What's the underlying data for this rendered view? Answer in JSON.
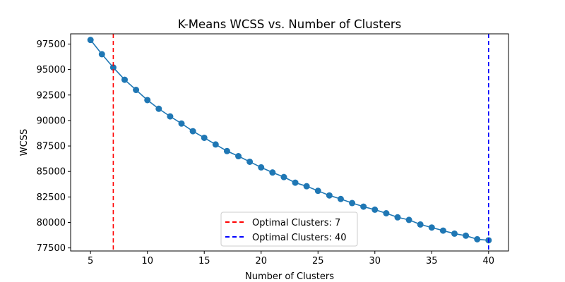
{
  "chart_data": {
    "type": "line",
    "title": "K-Means WCSS vs. Number of Clusters",
    "xlabel": "Number of Clusters",
    "ylabel": "WCSS",
    "xlim": [
      3.25,
      41.75
    ],
    "ylim": [
      77200,
      98500
    ],
    "xticks": [
      5,
      10,
      15,
      20,
      25,
      30,
      35,
      40
    ],
    "yticks": [
      77500,
      80000,
      82500,
      85000,
      87500,
      90000,
      92500,
      95000,
      97500
    ],
    "grid": false,
    "legend_position": "bottom-center",
    "series": [
      {
        "color": "#1f77b4",
        "marker": "circle",
        "x": [
          5,
          6,
          7,
          8,
          9,
          10,
          11,
          12,
          13,
          14,
          15,
          16,
          17,
          18,
          19,
          20,
          21,
          22,
          23,
          24,
          25,
          26,
          27,
          28,
          29,
          30,
          31,
          32,
          33,
          34,
          35,
          36,
          37,
          38,
          39,
          40
        ],
        "values": [
          97900,
          96500,
          95200,
          94000,
          93000,
          92000,
          91150,
          90400,
          89700,
          88950,
          88300,
          87650,
          87000,
          86500,
          85950,
          85400,
          84900,
          84450,
          83900,
          83550,
          83100,
          82650,
          82300,
          81900,
          81550,
          81250,
          80900,
          80500,
          80250,
          79800,
          79500,
          79200,
          78900,
          78700,
          78350,
          78250
        ]
      }
    ],
    "reference_lines": [
      {
        "orientation": "vertical",
        "x": 7,
        "color": "#ff0000",
        "style": "dashed",
        "label": "Optimal Clusters: 7"
      },
      {
        "orientation": "vertical",
        "x": 40,
        "color": "#0000ff",
        "style": "dashed",
        "label": "Optimal Clusters: 40"
      }
    ]
  }
}
